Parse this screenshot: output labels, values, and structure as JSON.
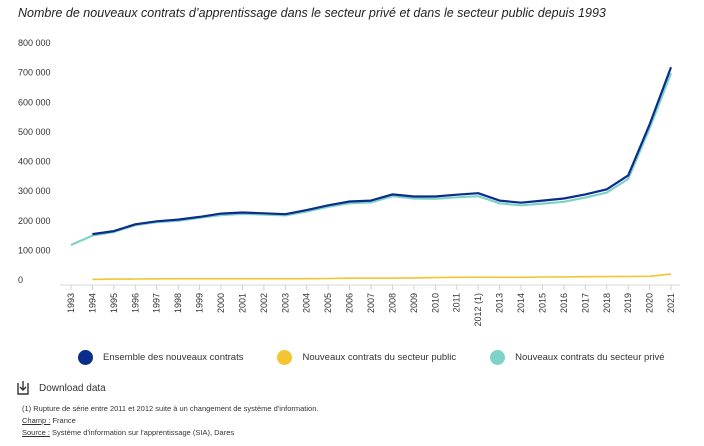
{
  "title": "Nombre de nouveaux contrats d’apprentissage dans le secteur privé et dans le secteur public depuis 1993",
  "chart_data": {
    "type": "line",
    "title": "Nombre de nouveaux contrats d’apprentissage dans le secteur privé et dans le secteur public depuis 1993",
    "xlabel": "",
    "ylabel": "",
    "ylim": [
      0,
      800000
    ],
    "y_ticks": [
      0,
      100000,
      200000,
      300000,
      400000,
      500000,
      600000,
      700000,
      800000
    ],
    "y_tick_labels": [
      "0",
      "100 000",
      "200 000",
      "300 000",
      "400 000",
      "500 000",
      "600 000",
      "700 000",
      "800 000"
    ],
    "categories": [
      "1993",
      "1994",
      "1995",
      "1996",
      "1997",
      "1998",
      "1999",
      "2000",
      "2001",
      "2002",
      "2003",
      "2004",
      "2005",
      "2006",
      "2007",
      "2008",
      "2009",
      "2010",
      "2011",
      "2012 (1)",
      "2013",
      "2014",
      "2015",
      "2016",
      "2017",
      "2018",
      "2019",
      "2020",
      "2021"
    ],
    "grid": false,
    "legend_position": "bottom",
    "series": [
      {
        "name": "Ensemble des nouveaux contrats",
        "color": "#0a2c8a",
        "values": [
          null,
          155000,
          165000,
          188000,
          198000,
          204000,
          213000,
          224000,
          228000,
          225000,
          222000,
          236000,
          252000,
          265000,
          268000,
          289000,
          282000,
          282000,
          288000,
          293000,
          268000,
          261000,
          268000,
          275000,
          289000,
          306000,
          353000,
          525000,
          718000
        ]
      },
      {
        "name": "Nouveaux contrats du secteur public",
        "color": "#f2c531",
        "values": [
          null,
          2000,
          3000,
          3500,
          4000,
          4500,
          4500,
          4500,
          4500,
          4500,
          4500,
          4500,
          5000,
          6000,
          6000,
          6000,
          7000,
          8000,
          9000,
          9500,
          9000,
          9000,
          10000,
          10500,
          11000,
          11500,
          12000,
          12500,
          20000
        ]
      },
      {
        "name": "Nouveaux contrats du secteur privé",
        "color": "#7ed3c8",
        "values": [
          118000,
          150000,
          162000,
          185000,
          195000,
          200000,
          210000,
          219000,
          223000,
          221000,
          218000,
          231000,
          247000,
          259000,
          262000,
          283000,
          275000,
          274000,
          279000,
          283000,
          259000,
          252000,
          258000,
          264000,
          278000,
          295000,
          341000,
          512000,
          698000
        ]
      }
    ]
  },
  "download_label": "Download data",
  "notes": {
    "note1": "(1) Rupture de série entre 2011 et 2012 suite à un changement de système d'information.",
    "champ_label": "Champ :",
    "champ_value": " France",
    "source_label": "Source :",
    "source_value": " Système d'information sur l'apprentissage (SIA), Dares"
  }
}
